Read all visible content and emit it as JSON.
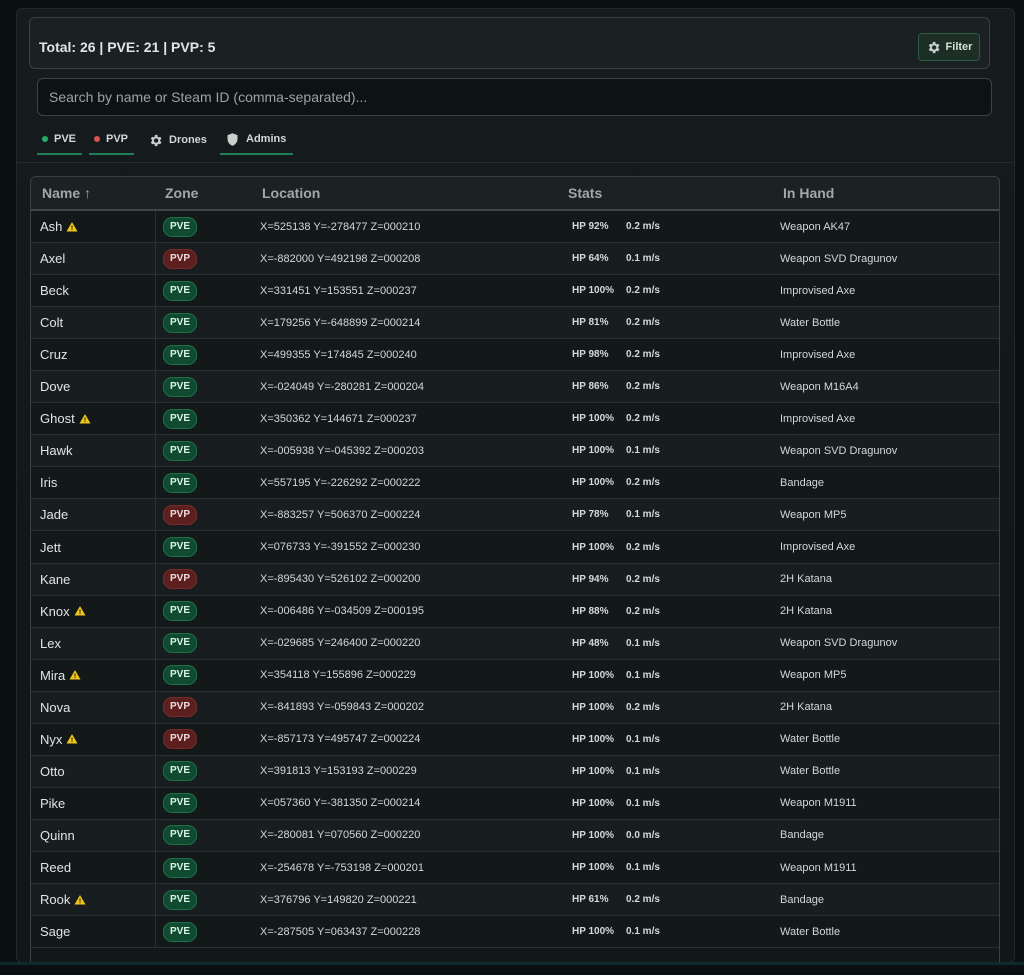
{
  "summary": "Total: 26 | PVE: 21 | PVP: 5",
  "filter_button": "Filter",
  "search_placeholder": "Search by name or Steam ID (comma-separated)...",
  "filters": [
    {
      "label": "PVE",
      "icon": "green-dot",
      "active": true
    },
    {
      "label": "PVP",
      "icon": "red-dot",
      "active": true
    },
    {
      "label": "Drones",
      "icon": "gear-icon",
      "active": false
    },
    {
      "label": "Admins",
      "icon": "shield-icon",
      "active": true
    }
  ],
  "columns": [
    "Name ↑",
    "Zone",
    "Location",
    "Stats",
    "In Hand"
  ],
  "colors": {
    "pve": "#0f4a31",
    "pvp": "#5c1f1f",
    "accent": "#1f7f55",
    "warning": "#f0c419"
  },
  "players": [
    {
      "name": "Ash",
      "warn": true,
      "zone": "PVE",
      "location": "X=525138 Y=-278477 Z=000210",
      "hp": "HP 92%",
      "speed": "0.2 m/s",
      "hand": "Weapon AK47"
    },
    {
      "name": "Axel",
      "warn": false,
      "zone": "PVP",
      "location": "X=-882000 Y=492198 Z=000208",
      "hp": "HP 64%",
      "speed": "0.1 m/s",
      "hand": "Weapon SVD Dragunov"
    },
    {
      "name": "Beck",
      "warn": false,
      "zone": "PVE",
      "location": "X=331451 Y=153551 Z=000237",
      "hp": "HP 100%",
      "speed": "0.2 m/s",
      "hand": "Improvised Axe"
    },
    {
      "name": "Colt",
      "warn": false,
      "zone": "PVE",
      "location": "X=179256 Y=-648899 Z=000214",
      "hp": "HP 81%",
      "speed": "0.2 m/s",
      "hand": "Water Bottle"
    },
    {
      "name": "Cruz",
      "warn": false,
      "zone": "PVE",
      "location": "X=499355 Y=174845 Z=000240",
      "hp": "HP 98%",
      "speed": "0.2 m/s",
      "hand": "Improvised Axe"
    },
    {
      "name": "Dove",
      "warn": false,
      "zone": "PVE",
      "location": "X=-024049 Y=-280281 Z=000204",
      "hp": "HP 86%",
      "speed": "0.2 m/s",
      "hand": "Weapon M16A4"
    },
    {
      "name": "Ghost",
      "warn": true,
      "zone": "PVE",
      "location": "X=350362 Y=144671 Z=000237",
      "hp": "HP 100%",
      "speed": "0.2 m/s",
      "hand": "Improvised Axe"
    },
    {
      "name": "Hawk",
      "warn": false,
      "zone": "PVE",
      "location": "X=-005938 Y=-045392 Z=000203",
      "hp": "HP 100%",
      "speed": "0.1 m/s",
      "hand": "Weapon SVD Dragunov"
    },
    {
      "name": "Iris",
      "warn": false,
      "zone": "PVE",
      "location": "X=557195 Y=-226292 Z=000222",
      "hp": "HP 100%",
      "speed": "0.2 m/s",
      "hand": "Bandage"
    },
    {
      "name": "Jade",
      "warn": false,
      "zone": "PVP",
      "location": "X=-883257 Y=506370 Z=000224",
      "hp": "HP 78%",
      "speed": "0.1 m/s",
      "hand": "Weapon MP5"
    },
    {
      "name": "Jett",
      "warn": false,
      "zone": "PVE",
      "location": "X=076733 Y=-391552 Z=000230",
      "hp": "HP 100%",
      "speed": "0.2 m/s",
      "hand": "Improvised Axe"
    },
    {
      "name": "Kane",
      "warn": false,
      "zone": "PVP",
      "location": "X=-895430 Y=526102 Z=000200",
      "hp": "HP 94%",
      "speed": "0.2 m/s",
      "hand": "2H Katana"
    },
    {
      "name": "Knox",
      "warn": true,
      "zone": "PVE",
      "location": "X=-006486 Y=-034509 Z=000195",
      "hp": "HP 88%",
      "speed": "0.2 m/s",
      "hand": "2H Katana"
    },
    {
      "name": "Lex",
      "warn": false,
      "zone": "PVE",
      "location": "X=-029685 Y=246400 Z=000220",
      "hp": "HP 48%",
      "speed": "0.1 m/s",
      "hand": "Weapon SVD Dragunov"
    },
    {
      "name": "Mira",
      "warn": true,
      "zone": "PVE",
      "location": "X=354118 Y=155896 Z=000229",
      "hp": "HP 100%",
      "speed": "0.1 m/s",
      "hand": "Weapon MP5"
    },
    {
      "name": "Nova",
      "warn": false,
      "zone": "PVP",
      "location": "X=-841893 Y=-059843 Z=000202",
      "hp": "HP 100%",
      "speed": "0.2 m/s",
      "hand": "2H Katana"
    },
    {
      "name": "Nyx",
      "warn": true,
      "zone": "PVP",
      "location": "X=-857173 Y=495747 Z=000224",
      "hp": "HP 100%",
      "speed": "0.1 m/s",
      "hand": "Water Bottle"
    },
    {
      "name": "Otto",
      "warn": false,
      "zone": "PVE",
      "location": "X=391813 Y=153193 Z=000229",
      "hp": "HP 100%",
      "speed": "0.1 m/s",
      "hand": "Water Bottle"
    },
    {
      "name": "Pike",
      "warn": false,
      "zone": "PVE",
      "location": "X=057360 Y=-381350 Z=000214",
      "hp": "HP 100%",
      "speed": "0.1 m/s",
      "hand": "Weapon M1911"
    },
    {
      "name": "Quinn",
      "warn": false,
      "zone": "PVE",
      "location": "X=-280081 Y=070560 Z=000220",
      "hp": "HP 100%",
      "speed": "0.0 m/s",
      "hand": "Bandage"
    },
    {
      "name": "Reed",
      "warn": false,
      "zone": "PVE",
      "location": "X=-254678 Y=-753198 Z=000201",
      "hp": "HP 100%",
      "speed": "0.1 m/s",
      "hand": "Weapon M1911"
    },
    {
      "name": "Rook",
      "warn": true,
      "zone": "PVE",
      "location": "X=376796 Y=149820 Z=000221",
      "hp": "HP 61%",
      "speed": "0.2 m/s",
      "hand": "Bandage"
    },
    {
      "name": "Sage",
      "warn": false,
      "zone": "PVE",
      "location": "X=-287505 Y=063437 Z=000228",
      "hp": "HP 100%",
      "speed": "0.1 m/s",
      "hand": "Water Bottle"
    }
  ]
}
